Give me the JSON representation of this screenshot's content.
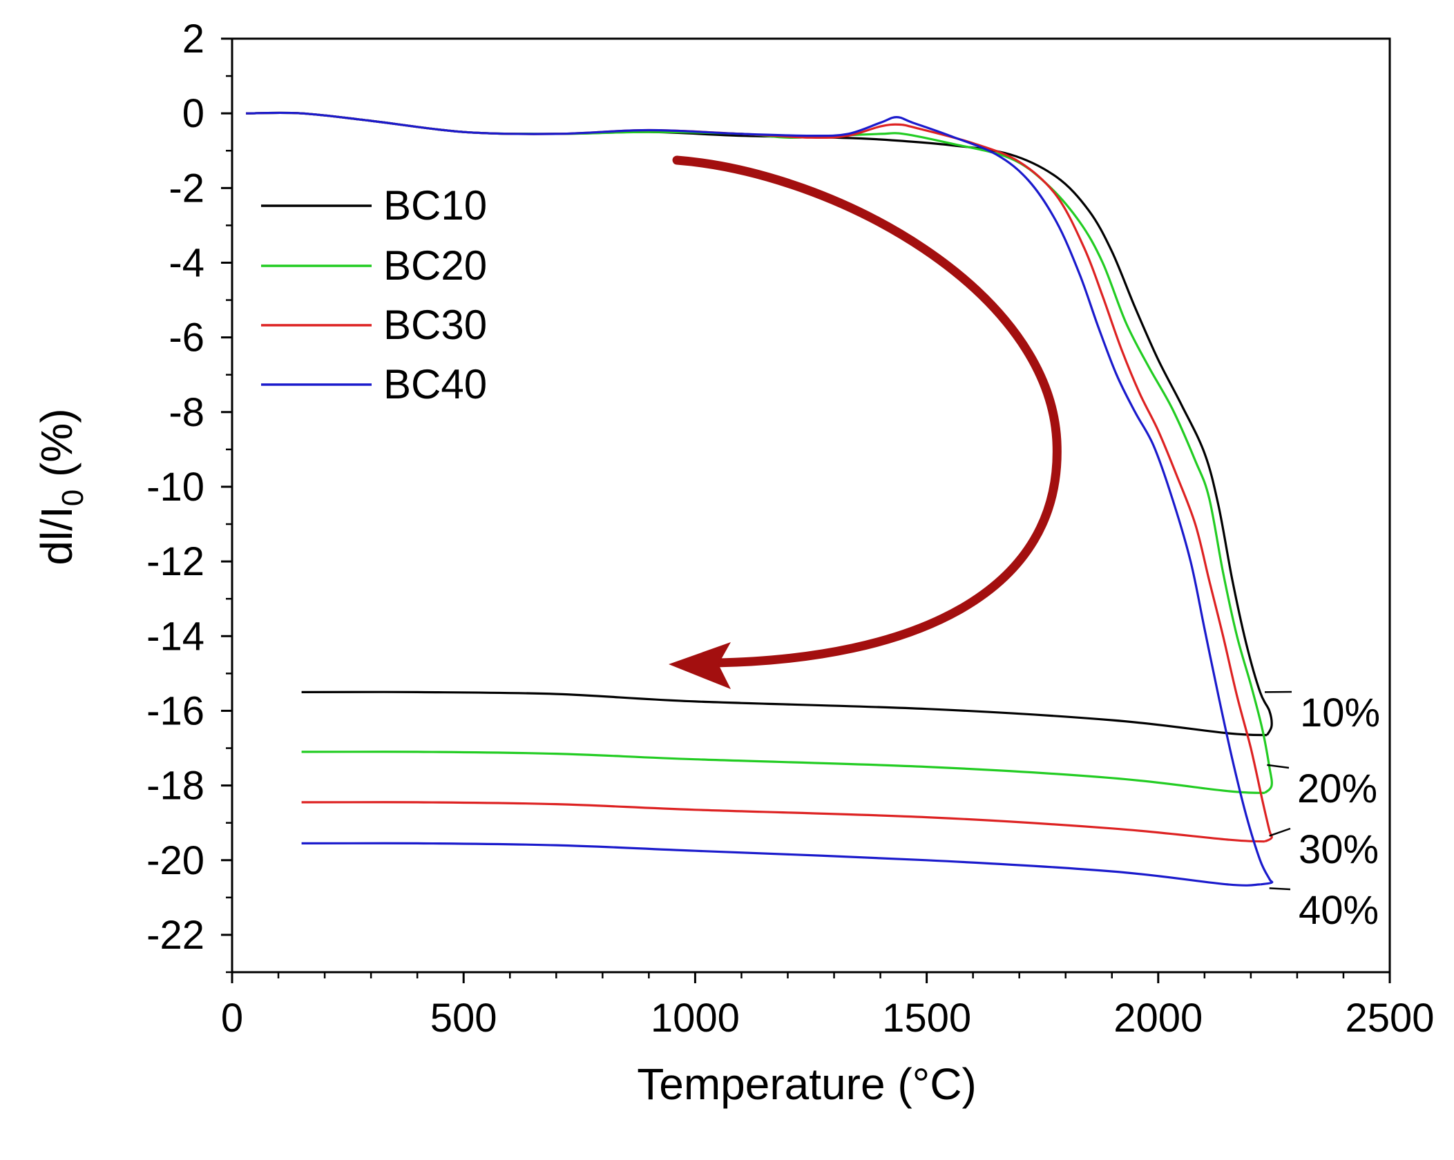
{
  "chart_data": {
    "type": "line",
    "title": "",
    "xlabel": "Temperature (°C)",
    "ylabel_main": "dl/I",
    "ylabel_sub": "0",
    "ylabel_suffix": " (%)",
    "xlim": [
      0,
      2500
    ],
    "ylim": [
      -23,
      2
    ],
    "xticks": [
      0,
      500,
      1000,
      1500,
      2000,
      2500
    ],
    "xtick_labels": [
      "0",
      "500",
      "1000",
      "1500",
      "2000",
      "2500"
    ],
    "yticks": [
      2,
      0,
      -2,
      -4,
      -6,
      -8,
      -10,
      -12,
      -14,
      -16,
      -18,
      -20,
      -22
    ],
    "ytick_labels": [
      "2",
      "0",
      "-2",
      "-4",
      "-6",
      "-8",
      "-10",
      "-12",
      "-14",
      "-16",
      "-18",
      "-20",
      "-22"
    ],
    "grid": false,
    "legend_position": "top-left",
    "colors": {
      "BC10": "#000000",
      "BC20": "#22cc22",
      "BC30": "#dd2222",
      "BC40": "#1a1acc",
      "arrow": "#a30f0f"
    },
    "series": [
      {
        "name": "BC10",
        "heating": [
          [
            30,
            0
          ],
          [
            150,
            0
          ],
          [
            300,
            -0.2
          ],
          [
            500,
            -0.5
          ],
          [
            700,
            -0.55
          ],
          [
            900,
            -0.5
          ],
          [
            1100,
            -0.6
          ],
          [
            1300,
            -0.65
          ],
          [
            1400,
            -0.7
          ],
          [
            1550,
            -0.85
          ],
          [
            1680,
            -1.1
          ],
          [
            1780,
            -1.7
          ],
          [
            1850,
            -2.6
          ],
          [
            1900,
            -3.7
          ],
          [
            1950,
            -5.2
          ],
          [
            2000,
            -6.6
          ],
          [
            2050,
            -7.8
          ],
          [
            2100,
            -9.1
          ],
          [
            2130,
            -10.5
          ],
          [
            2160,
            -12.5
          ],
          [
            2190,
            -14.2
          ],
          [
            2220,
            -15.5
          ],
          [
            2240,
            -16.0
          ],
          [
            2245,
            -16.4
          ],
          [
            2235,
            -16.65
          ]
        ],
        "cooling": [
          [
            2235,
            -16.65
          ],
          [
            2150,
            -16.6
          ],
          [
            1900,
            -16.25
          ],
          [
            1500,
            -15.95
          ],
          [
            1000,
            -15.75
          ],
          [
            700,
            -15.55
          ],
          [
            400,
            -15.5
          ],
          [
            150,
            -15.5
          ]
        ]
      },
      {
        "name": "BC20",
        "heating": [
          [
            30,
            0
          ],
          [
            150,
            0
          ],
          [
            300,
            -0.2
          ],
          [
            500,
            -0.5
          ],
          [
            700,
            -0.55
          ],
          [
            900,
            -0.5
          ],
          [
            1100,
            -0.55
          ],
          [
            1200,
            -0.65
          ],
          [
            1300,
            -0.6
          ],
          [
            1400,
            -0.55
          ],
          [
            1450,
            -0.55
          ],
          [
            1550,
            -0.8
          ],
          [
            1680,
            -1.2
          ],
          [
            1760,
            -1.9
          ],
          [
            1830,
            -2.9
          ],
          [
            1880,
            -4.0
          ],
          [
            1930,
            -5.6
          ],
          [
            1980,
            -6.8
          ],
          [
            2030,
            -7.9
          ],
          [
            2080,
            -9.3
          ],
          [
            2110,
            -10.3
          ],
          [
            2140,
            -12.3
          ],
          [
            2170,
            -14.0
          ],
          [
            2200,
            -15.3
          ],
          [
            2225,
            -16.5
          ],
          [
            2240,
            -17.5
          ],
          [
            2245,
            -18.0
          ],
          [
            2230,
            -18.2
          ]
        ],
        "cooling": [
          [
            2230,
            -18.2
          ],
          [
            2150,
            -18.15
          ],
          [
            1900,
            -17.8
          ],
          [
            1500,
            -17.5
          ],
          [
            1000,
            -17.3
          ],
          [
            700,
            -17.15
          ],
          [
            400,
            -17.1
          ],
          [
            150,
            -17.1
          ]
        ]
      },
      {
        "name": "BC30",
        "heating": [
          [
            30,
            0
          ],
          [
            150,
            0
          ],
          [
            300,
            -0.2
          ],
          [
            500,
            -0.5
          ],
          [
            700,
            -0.55
          ],
          [
            900,
            -0.45
          ],
          [
            1100,
            -0.55
          ],
          [
            1250,
            -0.65
          ],
          [
            1330,
            -0.6
          ],
          [
            1400,
            -0.35
          ],
          [
            1440,
            -0.3
          ],
          [
            1480,
            -0.4
          ],
          [
            1600,
            -0.8
          ],
          [
            1700,
            -1.3
          ],
          [
            1780,
            -2.2
          ],
          [
            1840,
            -3.6
          ],
          [
            1880,
            -4.9
          ],
          [
            1920,
            -6.3
          ],
          [
            1960,
            -7.5
          ],
          [
            2000,
            -8.5
          ],
          [
            2040,
            -9.7
          ],
          [
            2080,
            -11.0
          ],
          [
            2110,
            -12.5
          ],
          [
            2140,
            -14.0
          ],
          [
            2170,
            -15.6
          ],
          [
            2200,
            -17.0
          ],
          [
            2225,
            -18.4
          ],
          [
            2240,
            -19.2
          ],
          [
            2245,
            -19.4
          ],
          [
            2230,
            -19.5
          ]
        ],
        "cooling": [
          [
            2230,
            -19.5
          ],
          [
            2150,
            -19.45
          ],
          [
            1900,
            -19.15
          ],
          [
            1500,
            -18.85
          ],
          [
            1000,
            -18.65
          ],
          [
            700,
            -18.5
          ],
          [
            400,
            -18.45
          ],
          [
            150,
            -18.45
          ]
        ]
      },
      {
        "name": "BC40",
        "heating": [
          [
            30,
            0
          ],
          [
            150,
            0
          ],
          [
            300,
            -0.2
          ],
          [
            500,
            -0.5
          ],
          [
            700,
            -0.55
          ],
          [
            900,
            -0.45
          ],
          [
            1100,
            -0.55
          ],
          [
            1250,
            -0.6
          ],
          [
            1330,
            -0.55
          ],
          [
            1400,
            -0.25
          ],
          [
            1435,
            -0.1
          ],
          [
            1470,
            -0.25
          ],
          [
            1550,
            -0.6
          ],
          [
            1650,
            -1.1
          ],
          [
            1720,
            -1.8
          ],
          [
            1780,
            -2.9
          ],
          [
            1830,
            -4.3
          ],
          [
            1870,
            -5.7
          ],
          [
            1910,
            -7.0
          ],
          [
            1950,
            -8.0
          ],
          [
            1990,
            -8.9
          ],
          [
            2030,
            -10.3
          ],
          [
            2070,
            -12.0
          ],
          [
            2100,
            -13.8
          ],
          [
            2130,
            -15.6
          ],
          [
            2160,
            -17.3
          ],
          [
            2190,
            -18.8
          ],
          [
            2220,
            -20.0
          ],
          [
            2240,
            -20.5
          ],
          [
            2245,
            -20.6
          ],
          [
            2220,
            -20.65
          ]
        ],
        "cooling": [
          [
            2220,
            -20.65
          ],
          [
            2150,
            -20.65
          ],
          [
            1900,
            -20.3
          ],
          [
            1500,
            -20.0
          ],
          [
            1000,
            -19.75
          ],
          [
            700,
            -19.6
          ],
          [
            400,
            -19.55
          ],
          [
            150,
            -19.55
          ]
        ]
      }
    ],
    "annotations": [
      {
        "label": "10%",
        "series": "BC10",
        "point": [
          2230,
          -15.5
        ]
      },
      {
        "label": "20%",
        "series": "BC20",
        "point": [
          2235,
          -17.45
        ]
      },
      {
        "label": "30%",
        "series": "BC30",
        "point": [
          2240,
          -19.35
        ]
      },
      {
        "label": "40%",
        "series": "BC40",
        "point": [
          2240,
          -20.75
        ]
      }
    ],
    "arrow_direction": "heating-to-cooling"
  }
}
